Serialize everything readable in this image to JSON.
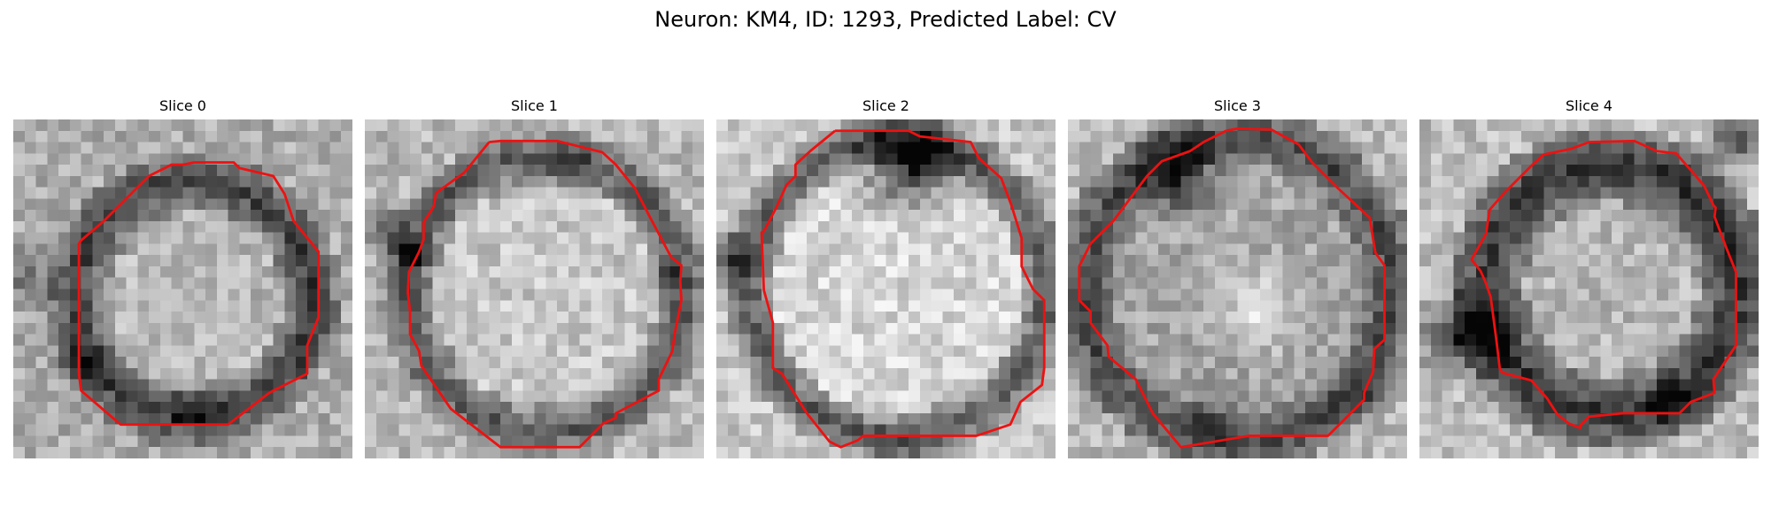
{
  "figure": {
    "title": "Neuron: KM4, ID: 1293, Predicted Label: CV"
  },
  "colors": {
    "contour": "#ee1111",
    "background": "#ffffff"
  },
  "slices": [
    {
      "label": "Slice 0"
    },
    {
      "label": "Slice 1"
    },
    {
      "label": "Slice 2"
    },
    {
      "label": "Slice 3"
    },
    {
      "label": "Slice 4"
    }
  ]
}
